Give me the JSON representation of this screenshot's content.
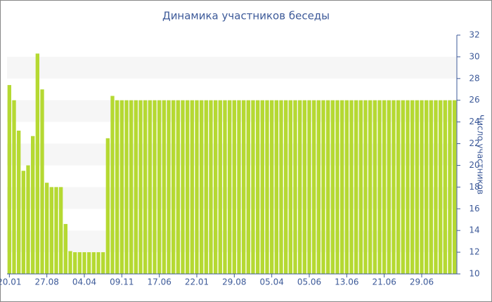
{
  "chart_data": {
    "type": "bar",
    "title": "Динамика участников беседы",
    "y_label": "Число участников",
    "categories": [
      "20.01",
      null,
      null,
      null,
      null,
      null,
      null,
      null,
      "27.08",
      null,
      null,
      null,
      null,
      null,
      null,
      null,
      "04.04",
      null,
      null,
      null,
      null,
      null,
      null,
      null,
      "09.11",
      null,
      null,
      null,
      null,
      null,
      null,
      null,
      "17.06",
      null,
      null,
      null,
      null,
      null,
      null,
      null,
      "22.01",
      null,
      null,
      null,
      null,
      null,
      null,
      null,
      "29.08",
      null,
      null,
      null,
      null,
      null,
      null,
      null,
      "05.04",
      null,
      null,
      null,
      null,
      null,
      null,
      null,
      "05.06",
      null,
      null,
      null,
      null,
      null,
      null,
      null,
      "13.06",
      null,
      null,
      null,
      null,
      null,
      null,
      null,
      "21.06",
      null,
      null,
      null,
      null,
      null,
      null,
      null,
      "29.06",
      null,
      null,
      null,
      null,
      null,
      null,
      null
    ],
    "values": [
      27.4,
      26,
      23.2,
      19.5,
      20,
      22.7,
      30.3,
      27,
      18.4,
      18,
      18,
      18,
      14.6,
      12.1,
      12,
      12,
      12,
      12,
      12,
      12,
      12,
      22.5,
      26.4,
      26,
      26,
      26,
      26,
      26,
      26,
      26,
      26,
      26,
      26,
      26,
      26,
      26,
      26,
      26,
      26,
      26,
      26,
      26,
      26,
      26,
      26,
      26,
      26,
      26,
      26,
      26,
      26,
      26,
      26,
      26,
      26,
      26,
      26,
      26,
      26,
      26,
      26,
      26,
      26,
      26,
      26,
      26,
      26,
      26,
      26,
      26,
      26,
      26,
      26,
      26,
      26,
      26,
      26,
      26,
      26,
      26,
      26,
      26,
      26,
      26,
      26,
      26,
      26,
      26,
      26,
      26,
      26,
      26,
      26,
      26,
      26,
      26
    ],
    "color": "#b5d932",
    "ylim": [
      10,
      32
    ],
    "yticks": [
      10,
      12,
      14,
      16,
      18,
      20,
      22,
      24,
      26,
      28,
      30,
      32
    ],
    "grid": "bands",
    "y_axis_side": "right"
  }
}
